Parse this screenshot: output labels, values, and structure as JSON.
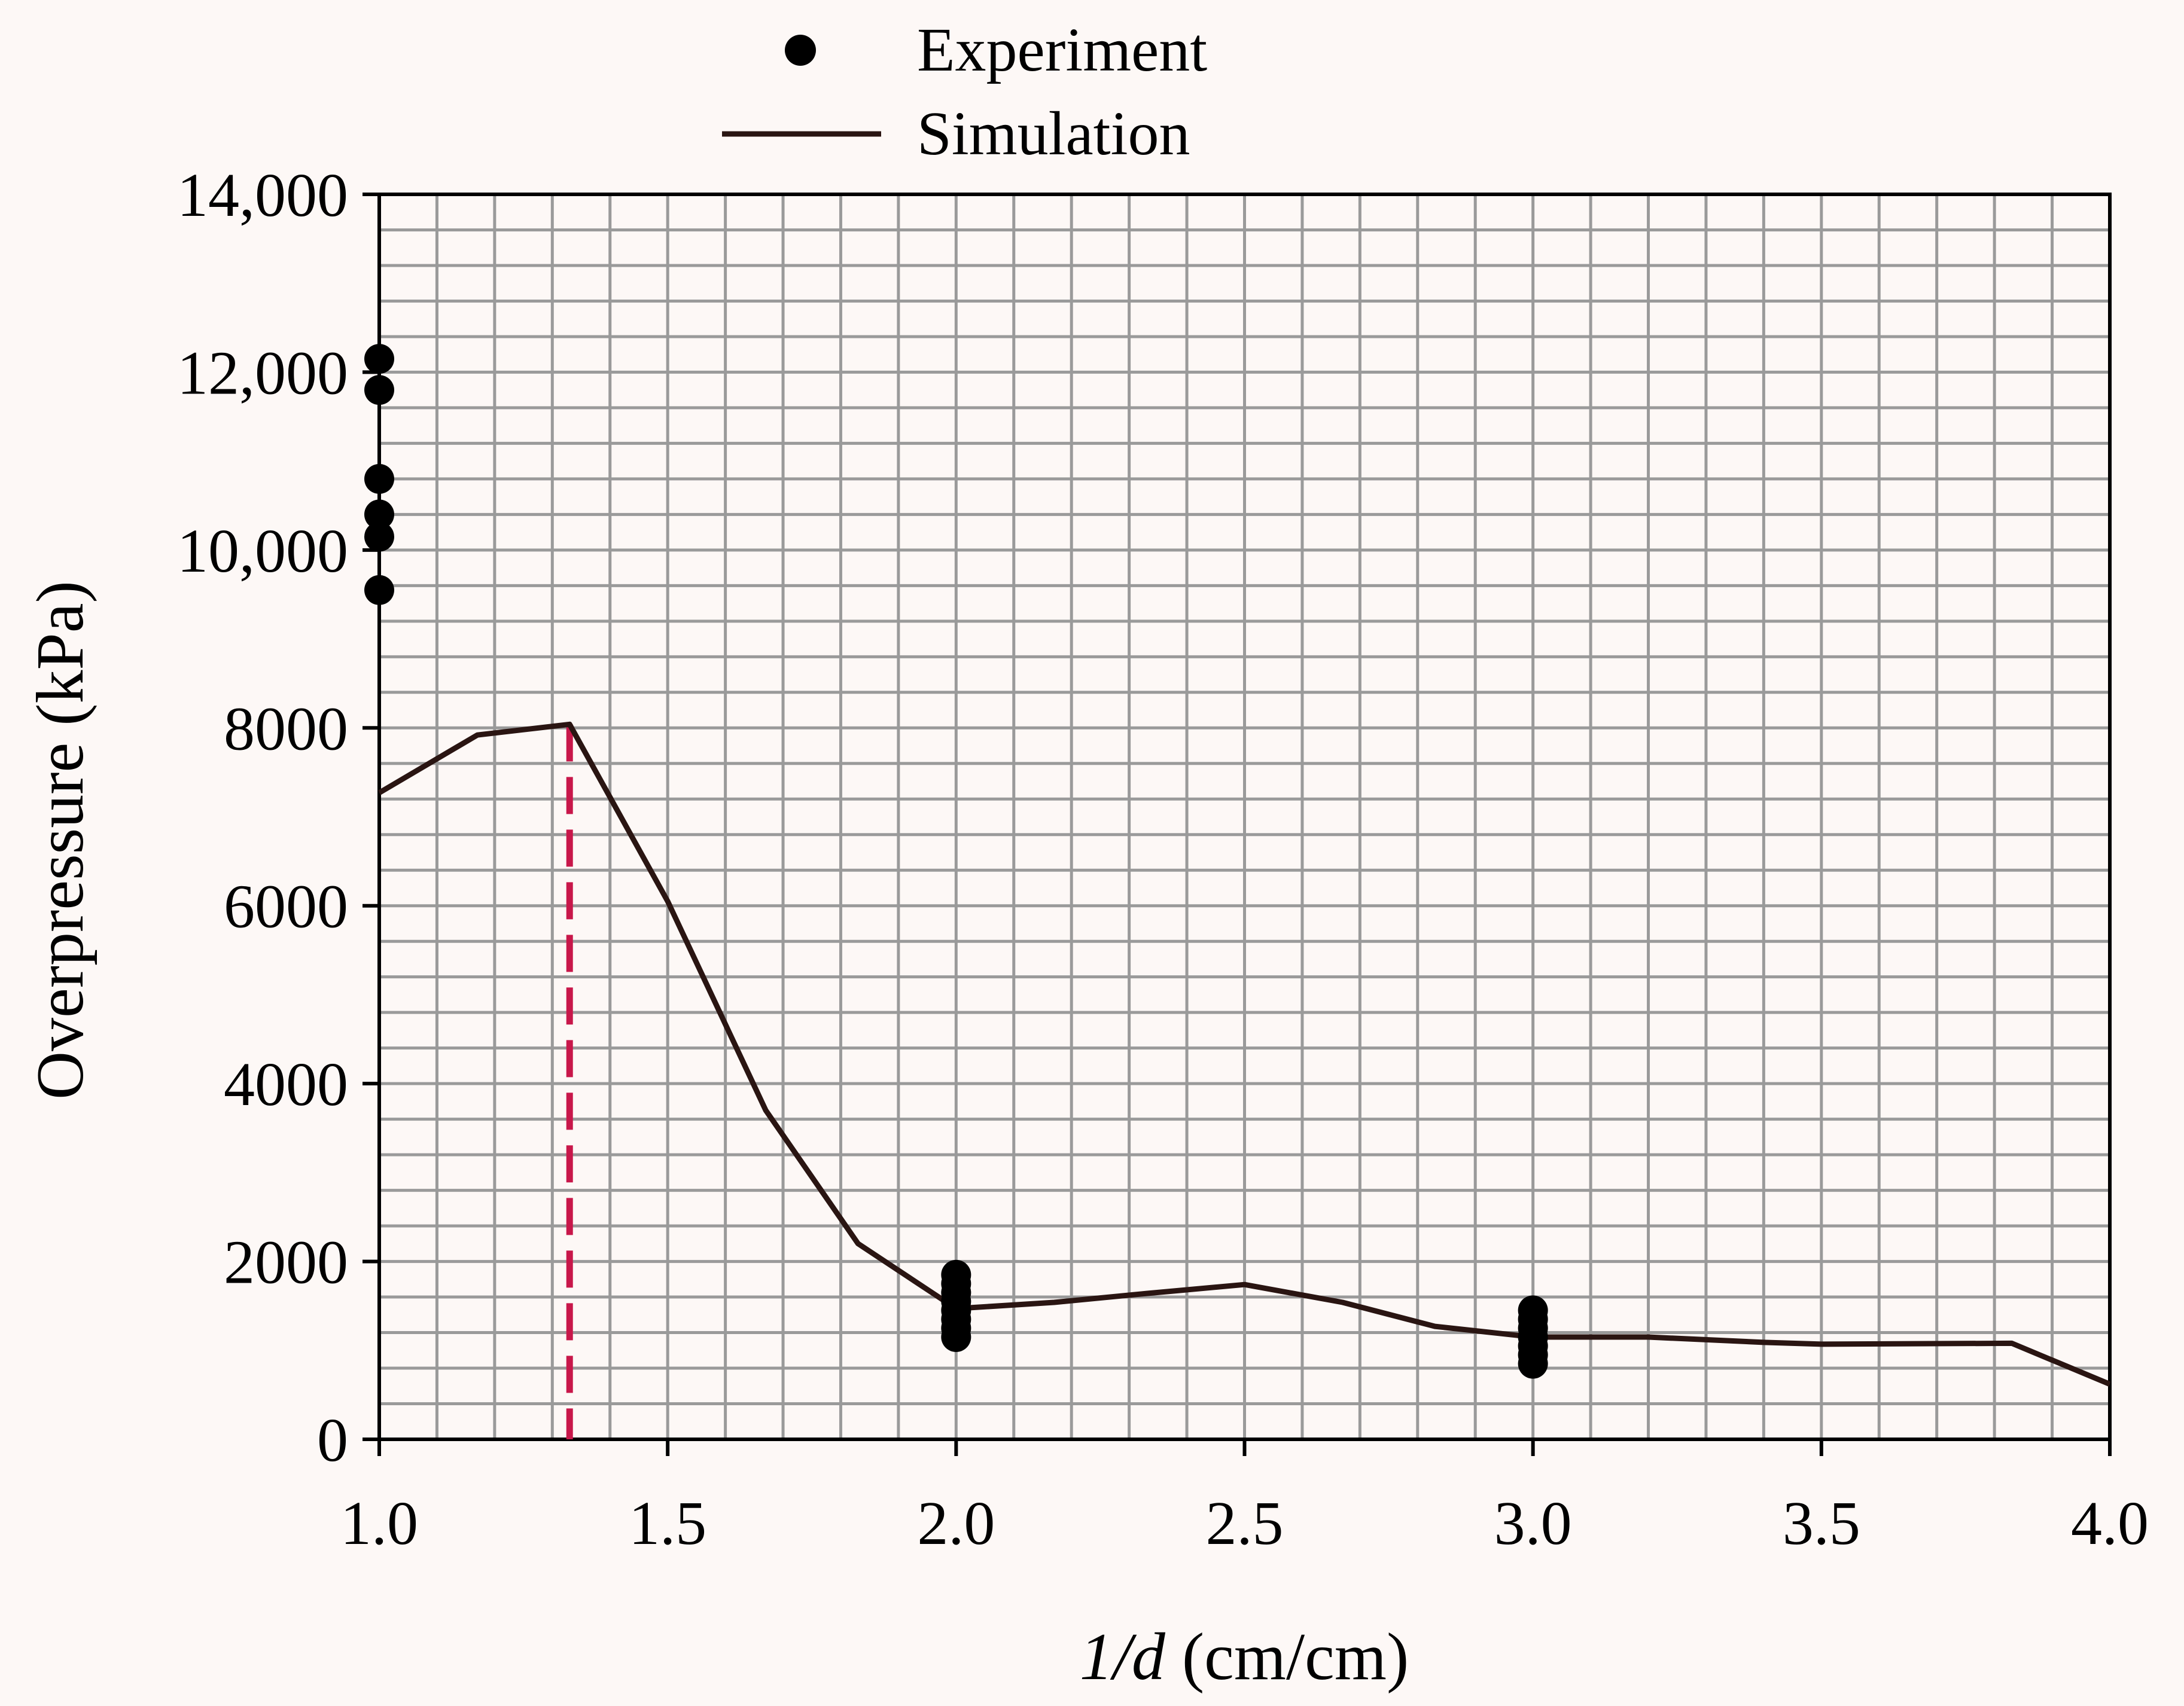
{
  "chart_data": {
    "type": "line",
    "title": "",
    "xlabel_prefix": "1/d",
    "xlabel_suffix": "(cm/cm)",
    "ylabel": "Overpressure (kPa)",
    "xlim": [
      1.0,
      4.0
    ],
    "ylim": [
      0,
      14000
    ],
    "x_ticks": [
      1.0,
      1.5,
      2.0,
      2.5,
      3.0,
      3.5,
      4.0
    ],
    "x_tick_labels": [
      "1.0",
      "1.5",
      "2.0",
      "2.5",
      "3.0",
      "3.5",
      "4.0"
    ],
    "y_ticks": [
      0,
      2000,
      4000,
      6000,
      8000,
      10000,
      12000,
      14000
    ],
    "y_tick_labels": [
      "0",
      "2000",
      "4000",
      "6000",
      "8000",
      "10,000",
      "12,000",
      "14,000"
    ],
    "grid": true,
    "legend": {
      "position": "top-center",
      "entries": [
        {
          "label": "Experiment",
          "marker": "circle"
        },
        {
          "label": "Simulation",
          "marker": "line"
        }
      ]
    },
    "series": [
      {
        "name": "Experiment",
        "kind": "scatter",
        "color": "#000000",
        "points": [
          {
            "x": 1.0,
            "y": 12150
          },
          {
            "x": 1.0,
            "y": 11800
          },
          {
            "x": 1.0,
            "y": 10800
          },
          {
            "x": 1.0,
            "y": 10400
          },
          {
            "x": 1.0,
            "y": 10150
          },
          {
            "x": 1.0,
            "y": 9550
          },
          {
            "x": 2.0,
            "y": 1850
          },
          {
            "x": 2.0,
            "y": 1750
          },
          {
            "x": 2.0,
            "y": 1650
          },
          {
            "x": 2.0,
            "y": 1550
          },
          {
            "x": 2.0,
            "y": 1450
          },
          {
            "x": 2.0,
            "y": 1350
          },
          {
            "x": 2.0,
            "y": 1250
          },
          {
            "x": 2.0,
            "y": 1150
          },
          {
            "x": 3.0,
            "y": 1450
          },
          {
            "x": 3.0,
            "y": 1350
          },
          {
            "x": 3.0,
            "y": 1250
          },
          {
            "x": 3.0,
            "y": 1150
          },
          {
            "x": 3.0,
            "y": 1050
          },
          {
            "x": 3.0,
            "y": 950
          },
          {
            "x": 3.0,
            "y": 850
          }
        ]
      },
      {
        "name": "Simulation",
        "kind": "line",
        "color": "#2a1512",
        "points": [
          {
            "x": 1.0,
            "y": 7270
          },
          {
            "x": 1.17,
            "y": 7920
          },
          {
            "x": 1.33,
            "y": 8040
          },
          {
            "x": 1.5,
            "y": 6050
          },
          {
            "x": 1.67,
            "y": 3700
          },
          {
            "x": 1.83,
            "y": 2200
          },
          {
            "x": 2.0,
            "y": 1470
          },
          {
            "x": 2.17,
            "y": 1540
          },
          {
            "x": 2.33,
            "y": 1640
          },
          {
            "x": 2.5,
            "y": 1740
          },
          {
            "x": 2.67,
            "y": 1540
          },
          {
            "x": 2.83,
            "y": 1270
          },
          {
            "x": 3.0,
            "y": 1150
          },
          {
            "x": 3.2,
            "y": 1150
          },
          {
            "x": 3.4,
            "y": 1090
          },
          {
            "x": 3.5,
            "y": 1070
          },
          {
            "x": 3.83,
            "y": 1080
          },
          {
            "x": 4.0,
            "y": 620
          }
        ]
      }
    ],
    "annotations": [
      {
        "type": "vertical-dashed-line",
        "x": 1.33,
        "y_from": 0,
        "y_to": 8040,
        "color": "#c8174a"
      }
    ],
    "colors": {
      "background": "#fdf8f6",
      "grid": "#9a9a9a",
      "axis": "#000000"
    }
  }
}
